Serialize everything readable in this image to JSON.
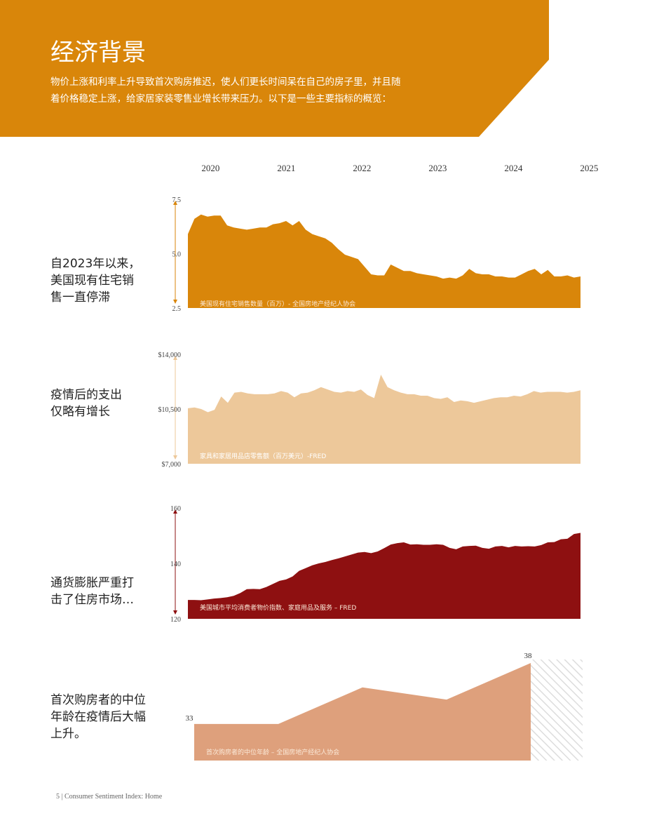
{
  "header": {
    "title": "经济背景",
    "intro": [
      "物价上涨和利率上升导致首次购房推迟，使人们更长时间呆在自己的房子里，并且随",
      "着价格稳定上涨，给家居家装零售业增长带来压力。以下是一些主要指标的概览："
    ]
  },
  "year_axis": {
    "xlim": [
      2019.7,
      2024.95
    ],
    "xticks": [
      2020,
      2021,
      2022,
      2023,
      2024,
      2025
    ]
  },
  "chart_data": [
    {
      "type": "area",
      "side_label": [
        "自2023年以来，",
        "美国现有住宅销",
        "售一直停滞"
      ],
      "caption": "美国现有住宅销售数量（百万）- 全国房地产经纪人协会",
      "color": "#d9860a",
      "ylim": [
        2.5,
        7.5
      ],
      "yticks": [
        2.5,
        {
          "value": 5,
          "label": "5.0"
        },
        7.5
      ],
      "values": [
        5.9,
        6.6,
        6.8,
        6.7,
        6.75,
        6.75,
        6.3,
        6.2,
        6.15,
        6.1,
        6.15,
        6.2,
        6.2,
        6.35,
        6.4,
        6.5,
        6.3,
        6.5,
        6.1,
        5.9,
        5.8,
        5.7,
        5.5,
        5.2,
        4.95,
        4.85,
        4.75,
        4.4,
        4.05,
        4.0,
        4.0,
        4.5,
        4.35,
        4.2,
        4.2,
        4.1,
        4.05,
        4.0,
        3.95,
        3.85,
        3.9,
        3.85,
        4.0,
        4.3,
        4.1,
        4.05,
        4.05,
        3.95,
        3.95,
        3.9,
        3.9,
        4.05,
        4.2,
        4.3,
        4.05,
        4.25,
        3.95,
        3.95,
        4.0,
        3.9,
        3.95
      ]
    },
    {
      "type": "area",
      "side_label": [
        "疫情后的支出",
        "仅略有增长"
      ],
      "caption": "家具和家居用品店零售额（百万美元）-FRED",
      "color": "#edc89a",
      "ylim": [
        7000,
        14000
      ],
      "yticks": [
        {
          "value": 7000,
          "label": "$7,000"
        },
        {
          "value": 10500,
          "label": "$10,500"
        },
        {
          "value": 14000,
          "label": "$14,000"
        }
      ],
      "values": [
        10550,
        10600,
        10500,
        10300,
        10450,
        11300,
        10900,
        11550,
        11600,
        11500,
        11450,
        11450,
        11450,
        11500,
        11650,
        11550,
        11250,
        11500,
        11550,
        11700,
        11900,
        11750,
        11600,
        11550,
        11650,
        11600,
        11750,
        11400,
        11200,
        12700,
        11900,
        11700,
        11550,
        11450,
        11450,
        11350,
        11350,
        11200,
        11150,
        11250,
        10950,
        11050,
        11000,
        10900,
        11000,
        11100,
        11200,
        11250,
        11250,
        11350,
        11300,
        11450,
        11650,
        11550,
        11600,
        11600,
        11600,
        11550,
        11600,
        11700
      ]
    },
    {
      "type": "area",
      "side_label": [
        "通货膨胀严重打",
        "击了住房市场…"
      ],
      "caption": "美国城市平均消费者物价指数、家庭用品及服务 – FRED",
      "color": "#8e1011",
      "ylim": [
        120,
        160
      ],
      "yticks": [
        120,
        140,
        160
      ],
      "values": [
        126.8,
        126.8,
        126.7,
        127,
        127.3,
        127.5,
        127.8,
        128.3,
        129.3,
        130.7,
        130.8,
        130.7,
        131.5,
        132.6,
        133.7,
        134.2,
        135.3,
        137.3,
        138.3,
        139.3,
        140,
        140.5,
        141.2,
        141.8,
        142.5,
        143.2,
        143.9,
        144.1,
        143.7,
        144.3,
        145.5,
        146.8,
        147.3,
        147.6,
        146.8,
        146.9,
        146.7,
        146.7,
        146.9,
        146.7,
        145.6,
        145.1,
        146.1,
        146.3,
        146.4,
        145.6,
        145.3,
        146.1,
        146.3,
        145.8,
        146.3,
        146.1,
        146.2,
        146.1,
        146.6,
        147.6,
        147.7,
        148.7,
        148.9,
        150.6,
        151
      ]
    },
    {
      "type": "area",
      "side_label": [
        "首次购房者的中位",
        "年龄在疫情后大幅",
        "上升。"
      ],
      "caption": "首次购房者的中位年龄 – 全国房地产经纪人协会",
      "color": "#dea07c",
      "ylim": [
        30,
        38
      ],
      "values": [
        33,
        33,
        36,
        35,
        38
      ]
    }
  ],
  "footer": "5 | Consumer Sentiment Index: Home"
}
